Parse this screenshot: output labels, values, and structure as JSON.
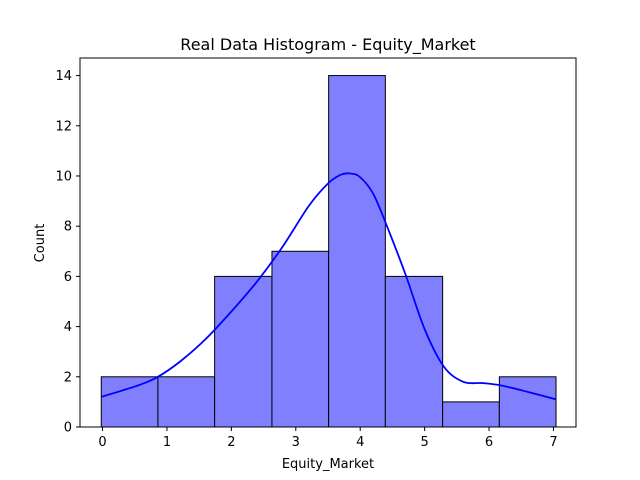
{
  "chart_data": {
    "type": "bar",
    "subtype": "histogram_with_kde",
    "title": "Real Data Histogram - Equity_Market",
    "xlabel": "Equity_Market",
    "ylabel": "Count",
    "xlim": [
      -0.35,
      7.35
    ],
    "ylim": [
      0,
      14.7
    ],
    "xticks": [
      0,
      1,
      2,
      3,
      4,
      5,
      6,
      7
    ],
    "yticks": [
      0,
      2,
      4,
      6,
      8,
      10,
      12,
      14
    ],
    "bins": [
      {
        "x0": -0.02,
        "x1": 0.86,
        "count": 2
      },
      {
        "x0": 0.86,
        "x1": 1.74,
        "count": 2
      },
      {
        "x0": 1.74,
        "x1": 2.63,
        "count": 6
      },
      {
        "x0": 2.63,
        "x1": 3.51,
        "count": 7
      },
      {
        "x0": 3.51,
        "x1": 4.39,
        "count": 14
      },
      {
        "x0": 4.39,
        "x1": 5.28,
        "count": 6
      },
      {
        "x0": 5.28,
        "x1": 6.16,
        "count": 1
      },
      {
        "x0": 6.16,
        "x1": 7.04,
        "count": 2
      }
    ],
    "kde": {
      "x": [
        -0.02,
        0.3,
        0.6,
        0.86,
        1.2,
        1.6,
        2.0,
        2.4,
        2.8,
        3.2,
        3.5,
        3.7,
        3.85,
        4.0,
        4.2,
        4.4,
        4.7,
        5.0,
        5.3,
        5.6,
        5.9,
        6.2,
        6.6,
        7.04
      ],
      "y": [
        1.2,
        1.45,
        1.7,
        2.0,
        2.6,
        3.5,
        4.6,
        5.8,
        7.2,
        8.8,
        9.7,
        10.05,
        10.1,
        9.95,
        9.3,
        8.1,
        6.1,
        3.9,
        2.4,
        1.8,
        1.75,
        1.65,
        1.4,
        1.1
      ]
    },
    "colors": {
      "bar_fill": "#8080ff",
      "bar_edge": "#000000",
      "kde_line": "#0000ff"
    },
    "grid": false,
    "legend": false
  }
}
